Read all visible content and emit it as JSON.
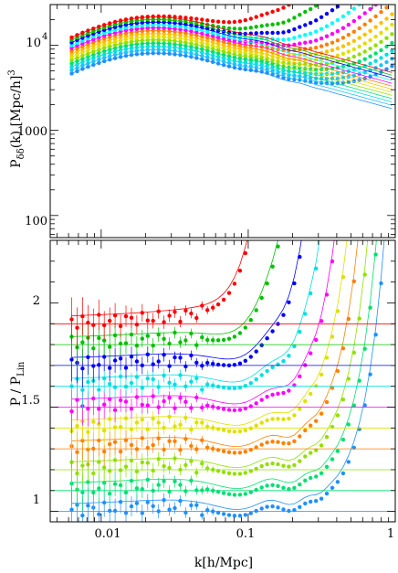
{
  "chart_data": [
    {
      "type": "scatter",
      "panel": "top",
      "ylabel_main": "P",
      "ylabel_sub": "δδ",
      "ylabel_rest": "(k)  [Mpc/h]",
      "ylabel_sup": "3",
      "xscale": "log",
      "yscale": "log",
      "xlim": [
        0.0045,
        1.0
      ],
      "ylim": [
        55,
        30000
      ],
      "ytick_labels": [
        "100",
        "1000",
        "10",
        "4"
      ],
      "yticks": [
        100,
        1000,
        10000
      ],
      "grid": false,
      "legend": "none",
      "series_colors": [
        "#1e90ff",
        "#20c0ff",
        "#00e0e0",
        "#00e070",
        "#90e000",
        "#e0e000",
        "#ffc000",
        "#ff8000",
        "#ff00ff",
        "#00ffff",
        "#0000ff",
        "#00c000",
        "#ff0000"
      ],
      "series_amplitudes": [
        12500,
        13700,
        15000,
        16400,
        17900,
        19500,
        21200,
        23000,
        24800,
        26800,
        28900,
        31000,
        33200
      ]
    },
    {
      "type": "scatter",
      "panel": "bottom",
      "ylabel_main": "P  /  P",
      "ylabel_sub": "Lin",
      "xlabel": "k[h/Mpc]",
      "xscale": "log",
      "xlim": [
        0.0045,
        1.0
      ],
      "ylim": [
        0.95,
        2.3
      ],
      "xtick_labels": [
        "0.01",
        "0.1",
        "1"
      ],
      "xticks": [
        0.01,
        0.1,
        1
      ],
      "ytick_labels": [
        "1",
        "1.5",
        "2"
      ],
      "yticks": [
        1,
        1.5,
        2
      ],
      "series_offsets": [
        1.0,
        1.1,
        1.2,
        1.3,
        1.4,
        1.5,
        1.6,
        1.7,
        1.8,
        1.9
      ],
      "series_colors": [
        "#1e90ff",
        "#00e070",
        "#90e000",
        "#ff8000",
        "#e0e000",
        "#ff00ff",
        "#00e0e0",
        "#0000ff",
        "#00c000",
        "#ff0000"
      ]
    }
  ]
}
